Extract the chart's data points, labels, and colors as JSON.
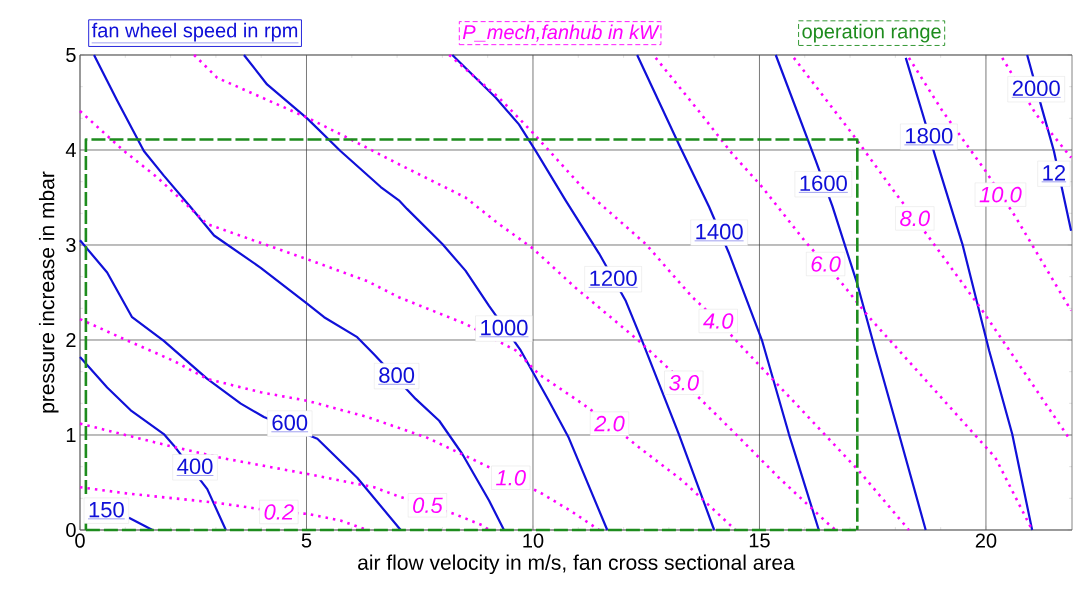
{
  "chart_data": {
    "type": "line",
    "xlabel": "air flow velocity in m/s, fan cross sectional area",
    "ylabel": "pressure increase in mbar",
    "xlim": [
      0,
      21.9
    ],
    "ylim": [
      0,
      5
    ],
    "xticks": [
      0,
      5,
      10,
      15,
      20
    ],
    "yticks": [
      0,
      1,
      2,
      3,
      4,
      5
    ],
    "grid": true,
    "legend": "top",
    "series": [
      {
        "name": "fan wheel speed in rpm",
        "color": "#1010d8",
        "line_style": "solid",
        "x": [
          1.08,
          1.6
        ],
        "values": [
          0.13,
          0
        ]
      },
      {
        "color": "#1010d8",
        "line_style": "solid",
        "x": [
          0,
          0.6,
          1.12,
          1.85,
          2.07,
          2.81,
          3.22
        ],
        "values": [
          1.82,
          1.5,
          1.26,
          1.01,
          0.89,
          0.43,
          0
        ]
      },
      {
        "color": "#1010d8",
        "line_style": "solid",
        "x": [
          0,
          0.6,
          1.15,
          1.85,
          2.81,
          3.55,
          4.06,
          5.24,
          6.12,
          7.08
        ],
        "values": [
          3.05,
          2.71,
          2.24,
          1.99,
          1.59,
          1.33,
          1.19,
          0.96,
          0.55,
          0
        ]
      },
      {
        "color": "#1010d8",
        "line_style": "solid",
        "x": [
          0.31,
          0.82,
          1.41,
          1.85,
          2.44,
          2.96,
          3.99,
          5.02,
          5.39,
          6.12,
          6.49,
          7.41,
          7.93,
          8.44,
          9.03,
          9.36
        ],
        "values": [
          5,
          4.52,
          3.99,
          3.73,
          3.4,
          3.1,
          2.76,
          2.38,
          2.24,
          2.03,
          1.85,
          1.38,
          1.15,
          0.8,
          0.31,
          0
        ]
      },
      {
        "color": "#1010d8",
        "line_style": "solid",
        "x": [
          3.62,
          4.13,
          5.02,
          5.75,
          6.64,
          7.04,
          7.22,
          8.0,
          8.51,
          9.03,
          9.73,
          10.35,
          10.79,
          11.64
        ],
        "values": [
          5,
          4.69,
          4.33,
          3.99,
          3.61,
          3.47,
          3.38,
          3.01,
          2.73,
          2.36,
          1.89,
          1.36,
          0.97,
          0
        ]
      },
      {
        "color": "#1010d8",
        "line_style": "solid",
        "x": [
          8.22,
          9.18,
          9.69,
          10.06,
          10.72,
          11.46,
          12.05,
          12.41,
          13.22,
          14.0
        ],
        "values": [
          5,
          4.55,
          4.27,
          3.99,
          3.47,
          2.91,
          2.41,
          1.99,
          1.01,
          0
        ]
      },
      {
        "color": "#1010d8",
        "line_style": "solid",
        "x": [
          12.3,
          13.22,
          13.89,
          14.33,
          15.06,
          15.65,
          16.31
        ],
        "values": [
          5,
          4.06,
          3.4,
          2.91,
          1.99,
          1.01,
          0
        ]
      },
      {
        "color": "#1010d8",
        "line_style": "solid",
        "x": [
          15.36,
          16.24,
          16.61,
          17.16,
          17.56,
          18.08,
          18.67
        ],
        "values": [
          5,
          3.89,
          3.41,
          2.59,
          1.89,
          1.01,
          0
        ]
      },
      {
        "color": "#1010d8",
        "line_style": "solid",
        "x": [
          18.23,
          18.59,
          18.89,
          19.48,
          20.07,
          20.58,
          21.02
        ],
        "values": [
          4.97,
          4.4,
          3.92,
          3.01,
          1.89,
          1.01,
          0
        ]
      },
      {
        "color": "#1010d8",
        "line_style": "solid",
        "x": [
          20.91,
          21.24,
          21.5,
          21.88
        ],
        "values": [
          5,
          4.43,
          3.99,
          3.15
        ]
      },
      {
        "name": "P_mech,fanhub in kW",
        "color": "#ff00ff",
        "line_style": "dotted",
        "x": [
          0,
          1.12,
          2.96,
          3.69,
          4.39,
          5.02,
          5.75,
          6.34
        ],
        "values": [
          0.45,
          0.38,
          0.29,
          0.24,
          0.19,
          0.17,
          0.1,
          0
        ]
      },
      {
        "color": "#ff00ff",
        "line_style": "dotted",
        "x": [
          0,
          1.34,
          1.93,
          3.11,
          5.02,
          6.49,
          7.0,
          7.67,
          8.26,
          8.88,
          9.03
        ],
        "values": [
          1.12,
          0.96,
          0.89,
          0.76,
          0.59,
          0.45,
          0.36,
          0.26,
          0.17,
          0.05,
          0
        ]
      },
      {
        "color": "#ff00ff",
        "line_style": "dotted",
        "x": [
          0,
          0.97,
          2.07,
          2.81,
          3.99,
          5.02,
          6.34,
          7.67,
          8.73,
          9.51,
          10.21,
          10.87,
          11.46
        ],
        "values": [
          2.22,
          2.01,
          1.78,
          1.59,
          1.45,
          1.36,
          1.19,
          0.97,
          0.73,
          0.55,
          0.38,
          0.19,
          0
        ]
      },
      {
        "color": "#ff00ff",
        "line_style": "dotted",
        "x": [
          0,
          0.97,
          1.71,
          2.81,
          4.06,
          5.02,
          6.34,
          7.04,
          8.51,
          9.62,
          10.13,
          11.09,
          11.69,
          12.34,
          13.3,
          14.47
        ],
        "values": [
          4.41,
          3.99,
          3.71,
          3.22,
          3.01,
          2.85,
          2.62,
          2.45,
          2.17,
          1.89,
          1.64,
          1.33,
          1.12,
          0.87,
          0.52,
          0
        ]
      },
      {
        "color": "#ff00ff",
        "line_style": "dotted",
        "x": [
          2.52,
          3.03,
          5.02,
          5.9,
          7.04,
          8.51,
          9.25,
          9.98,
          10.94,
          12.34,
          13.33,
          14.33,
          15.43,
          16.53,
          16.68
        ],
        "values": [
          5,
          4.76,
          4.34,
          4.13,
          3.85,
          3.5,
          3.22,
          2.97,
          2.55,
          1.99,
          1.55,
          1.08,
          0.55,
          0.06,
          0
        ]
      },
      {
        "color": "#ff00ff",
        "line_style": "dotted",
        "x": [
          8.15,
          9.25,
          9.98,
          11.16,
          12.49,
          13.52,
          14.09,
          14.55,
          15.8,
          17.2,
          18.3
        ],
        "values": [
          5,
          4.55,
          4.19,
          3.57,
          3.01,
          2.45,
          2.2,
          1.96,
          1.33,
          0.62,
          0
        ]
      },
      {
        "color": "#ff00ff",
        "line_style": "dotted",
        "x": [
          12.71,
          13.66,
          14.4,
          15.06,
          16.02,
          16.46,
          16.83,
          17.42,
          18.74,
          20.21,
          21.02
        ],
        "values": [
          4.97,
          4.41,
          3.96,
          3.61,
          3.03,
          2.8,
          2.59,
          2.24,
          1.54,
          0.76,
          0
        ]
      },
      {
        "color": "#ff00ff",
        "line_style": "dotted",
        "x": [
          15.76,
          17.05,
          18.01,
          18.43,
          18.82,
          19.92,
          21.83
        ],
        "values": [
          4.97,
          4.17,
          3.54,
          3.28,
          3.03,
          2.31,
          0.97
        ]
      },
      {
        "color": "#ff00ff",
        "line_style": "dotted",
        "x": [
          18.3,
          19.04,
          19.99,
          20.66,
          21.88
        ],
        "values": [
          4.97,
          4.41,
          3.78,
          3.29,
          2.31
        ]
      },
      {
        "color": "#ff00ff",
        "line_style": "dotted",
        "x": [
          20.36,
          21.1,
          21.88
        ],
        "values": [
          4.97,
          4.38,
          3.92
        ]
      },
      {
        "name": "operation range",
        "color": "#1e8c1e",
        "line_style": "dashed",
        "x": [
          0.13,
          0.13,
          17.16,
          17.16
        ],
        "values": [
          0,
          4.11,
          4.11,
          0
        ]
      },
      {
        "color": "#1e8c1e",
        "line_style": "dashed",
        "x": [
          0.13,
          17.16
        ],
        "values": [
          0,
          0
        ]
      }
    ],
    "annotations": [
      {
        "text": "150",
        "x": 1.08,
        "y": 0.13
      },
      {
        "text": "400",
        "x": 2.54,
        "y": 0.66
      },
      {
        "text": "600",
        "x": 4.63,
        "y": 1.12
      },
      {
        "text": "800",
        "x": 6.99,
        "y": 1.62
      },
      {
        "text": "1000",
        "x": 9.36,
        "y": 2.12
      },
      {
        "text": "1200",
        "x": 11.77,
        "y": 2.64
      },
      {
        "text": "1400",
        "x": 14.11,
        "y": 3.13
      },
      {
        "text": "1600",
        "x": 16.41,
        "y": 3.64
      },
      {
        "text": "1800",
        "x": 18.74,
        "y": 4.14
      },
      {
        "text": "2000",
        "x": 21.11,
        "y": 4.64
      },
      {
        "text": "0.2",
        "x": 4.39,
        "y": 0.19
      },
      {
        "text": "0.5",
        "x": 7.67,
        "y": 0.26
      },
      {
        "text": "1.0",
        "x": 9.51,
        "y": 0.55
      },
      {
        "text": "2.0",
        "x": 11.69,
        "y": 1.12
      },
      {
        "text": "3.0",
        "x": 13.33,
        "y": 1.55
      },
      {
        "text": "4.0",
        "x": 14.09,
        "y": 2.2
      },
      {
        "text": "6.0",
        "x": 16.46,
        "y": 2.8
      },
      {
        "text": "8.0",
        "x": 18.43,
        "y": 3.28
      },
      {
        "text": "10.0",
        "x": 20.32,
        "y": 3.53
      },
      {
        "text": "12",
        "x": 21.5,
        "y": 3.75
      }
    ]
  }
}
